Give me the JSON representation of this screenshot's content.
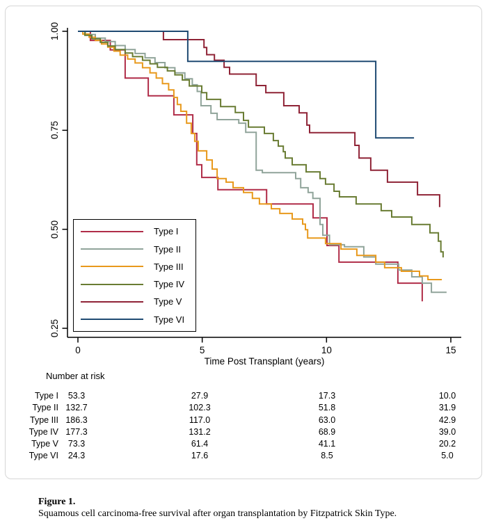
{
  "figure": {
    "caption_label": "Figure 1.",
    "caption_text": "Squamous cell carcinoma-free survival after organ transplantation by Fitzpatrick Skin Type."
  },
  "risk_table": {
    "heading": "Number at risk",
    "rows": [
      {
        "label": "Type I",
        "values": [
          "53.3",
          "27.9",
          "17.3",
          "10.0"
        ]
      },
      {
        "label": "Type II",
        "values": [
          "132.7",
          "102.3",
          "51.8",
          "31.9"
        ]
      },
      {
        "label": "Type III",
        "values": [
          "186.3",
          "117.0",
          "63.0",
          "42.9"
        ]
      },
      {
        "label": "Type IV",
        "values": [
          "177.3",
          "131.2",
          "68.9",
          "39.0"
        ]
      },
      {
        "label": "Type V",
        "values": [
          "73.3",
          "61.4",
          "41.1",
          "20.2"
        ]
      },
      {
        "label": "Type VI",
        "values": [
          "24.3",
          "17.6",
          "8.5",
          "5.0"
        ]
      }
    ]
  },
  "chart_data": {
    "type": "line",
    "step": true,
    "title": "",
    "xlabel": "Time Post Transplant (years)",
    "ylabel": "",
    "xlim": [
      0,
      15.2
    ],
    "ylim": [
      0.25,
      1.0
    ],
    "grid": false,
    "legend_position": "inside-left",
    "x_ticks": [
      {
        "v": 0,
        "label": "0"
      },
      {
        "v": 5,
        "label": "5"
      },
      {
        "v": 10,
        "label": "10"
      },
      {
        "v": 15,
        "label": "15"
      }
    ],
    "y_ticks": [
      {
        "v": 1.0,
        "label": "1.00"
      },
      {
        "v": 0.75,
        "label": "0.75"
      },
      {
        "v": 0.5,
        "label": "0.50"
      },
      {
        "v": 0.25,
        "label": "0.25"
      }
    ],
    "series": [
      {
        "name": "Type I",
        "color": "#b02c48",
        "points": [
          [
            0,
            1.0
          ],
          [
            0.5,
            0.977
          ],
          [
            1.3,
            0.953
          ],
          [
            1.9,
            0.882
          ],
          [
            2.83,
            0.837
          ],
          [
            3.86,
            0.789
          ],
          [
            4.62,
            0.742
          ],
          [
            4.78,
            0.663
          ],
          [
            4.98,
            0.631
          ],
          [
            5.63,
            0.6
          ],
          [
            7.59,
            0.564
          ],
          [
            9.46,
            0.529
          ],
          [
            10.02,
            0.459
          ],
          [
            10.5,
            0.417
          ],
          [
            12.87,
            0.364
          ],
          [
            13.85,
            0.318
          ]
        ]
      },
      {
        "name": "Type II",
        "color": "#90a49a",
        "points": [
          [
            0,
            1.0
          ],
          [
            0.3,
            0.992
          ],
          [
            0.7,
            0.983
          ],
          [
            1.1,
            0.974
          ],
          [
            1.5,
            0.964
          ],
          [
            1.9,
            0.954
          ],
          [
            2.3,
            0.944
          ],
          [
            2.7,
            0.933
          ],
          [
            3.1,
            0.921
          ],
          [
            3.5,
            0.908
          ],
          [
            3.9,
            0.895
          ],
          [
            4.3,
            0.88
          ],
          [
            4.6,
            0.865
          ],
          [
            4.8,
            0.848
          ],
          [
            4.95,
            0.812
          ],
          [
            5.35,
            0.793
          ],
          [
            5.6,
            0.777
          ],
          [
            6.47,
            0.768
          ],
          [
            6.75,
            0.745
          ],
          [
            7.17,
            0.649
          ],
          [
            7.42,
            0.643
          ],
          [
            8.76,
            0.628
          ],
          [
            8.96,
            0.605
          ],
          [
            9.26,
            0.593
          ],
          [
            9.45,
            0.578
          ],
          [
            9.74,
            0.512
          ],
          [
            9.85,
            0.485
          ],
          [
            10.12,
            0.461
          ],
          [
            10.72,
            0.456
          ],
          [
            11.5,
            0.43
          ],
          [
            11.98,
            0.412
          ],
          [
            12.9,
            0.397
          ],
          [
            13.43,
            0.38
          ],
          [
            13.85,
            0.364
          ],
          [
            14.22,
            0.341
          ],
          [
            14.83,
            0.341
          ]
        ]
      },
      {
        "name": "Type III",
        "color": "#e8991c",
        "points": [
          [
            0,
            1.0
          ],
          [
            0.2,
            0.993
          ],
          [
            0.45,
            0.985
          ],
          [
            0.7,
            0.977
          ],
          [
            0.95,
            0.968
          ],
          [
            1.2,
            0.96
          ],
          [
            1.45,
            0.95
          ],
          [
            1.7,
            0.94
          ],
          [
            2.0,
            0.93
          ],
          [
            2.3,
            0.92
          ],
          [
            2.6,
            0.908
          ],
          [
            2.9,
            0.895
          ],
          [
            3.15,
            0.882
          ],
          [
            3.4,
            0.868
          ],
          [
            3.65,
            0.852
          ],
          [
            3.86,
            0.833
          ],
          [
            4.0,
            0.815
          ],
          [
            4.14,
            0.798
          ],
          [
            4.37,
            0.768
          ],
          [
            4.56,
            0.742
          ],
          [
            4.7,
            0.722
          ],
          [
            4.84,
            0.698
          ],
          [
            5.18,
            0.675
          ],
          [
            5.4,
            0.652
          ],
          [
            5.6,
            0.628
          ],
          [
            5.96,
            0.619
          ],
          [
            6.24,
            0.605
          ],
          [
            6.66,
            0.593
          ],
          [
            7.02,
            0.578
          ],
          [
            7.3,
            0.564
          ],
          [
            7.78,
            0.552
          ],
          [
            8.12,
            0.54
          ],
          [
            8.62,
            0.526
          ],
          [
            9.04,
            0.513
          ],
          [
            9.15,
            0.499
          ],
          [
            9.24,
            0.478
          ],
          [
            9.96,
            0.464
          ],
          [
            10.58,
            0.45
          ],
          [
            11.22,
            0.434
          ],
          [
            11.98,
            0.417
          ],
          [
            12.34,
            0.403
          ],
          [
            13.01,
            0.394
          ],
          [
            13.74,
            0.382
          ],
          [
            14.08,
            0.373
          ],
          [
            14.64,
            0.373
          ]
        ]
      },
      {
        "name": "Type IV",
        "color": "#697c33",
        "points": [
          [
            0,
            1.0
          ],
          [
            0.28,
            0.99
          ],
          [
            0.56,
            0.981
          ],
          [
            0.9,
            0.972
          ],
          [
            1.2,
            0.963
          ],
          [
            1.5,
            0.954
          ],
          [
            1.9,
            0.945
          ],
          [
            2.2,
            0.936
          ],
          [
            2.6,
            0.927
          ],
          [
            2.9,
            0.918
          ],
          [
            3.2,
            0.909
          ],
          [
            3.6,
            0.9
          ],
          [
            3.9,
            0.89
          ],
          [
            4.2,
            0.877
          ],
          [
            4.48,
            0.862
          ],
          [
            4.98,
            0.845
          ],
          [
            5.18,
            0.828
          ],
          [
            5.74,
            0.81
          ],
          [
            6.33,
            0.795
          ],
          [
            6.66,
            0.775
          ],
          [
            6.86,
            0.758
          ],
          [
            7.5,
            0.742
          ],
          [
            7.86,
            0.724
          ],
          [
            8.06,
            0.71
          ],
          [
            8.26,
            0.696
          ],
          [
            8.34,
            0.68
          ],
          [
            8.62,
            0.663
          ],
          [
            9.18,
            0.645
          ],
          [
            9.74,
            0.628
          ],
          [
            9.96,
            0.614
          ],
          [
            10.3,
            0.596
          ],
          [
            10.52,
            0.582
          ],
          [
            11.19,
            0.564
          ],
          [
            12.2,
            0.547
          ],
          [
            12.62,
            0.531
          ],
          [
            13.43,
            0.512
          ],
          [
            14.16,
            0.491
          ],
          [
            14.5,
            0.47
          ],
          [
            14.6,
            0.443
          ],
          [
            14.69,
            0.429
          ]
        ]
      },
      {
        "name": "Type V",
        "color": "#8f2336",
        "points": [
          [
            0,
            1.0
          ],
          [
            3.44,
            0.979
          ],
          [
            5.07,
            0.959
          ],
          [
            5.18,
            0.941
          ],
          [
            5.49,
            0.927
          ],
          [
            5.88,
            0.909
          ],
          [
            6.1,
            0.892
          ],
          [
            7.17,
            0.863
          ],
          [
            7.56,
            0.845
          ],
          [
            8.28,
            0.812
          ],
          [
            8.9,
            0.794
          ],
          [
            9.21,
            0.763
          ],
          [
            9.32,
            0.744
          ],
          [
            11.14,
            0.712
          ],
          [
            11.31,
            0.68
          ],
          [
            11.78,
            0.649
          ],
          [
            12.45,
            0.619
          ],
          [
            13.66,
            0.587
          ],
          [
            14.55,
            0.556
          ]
        ]
      },
      {
        "name": "Type VI",
        "color": "#1f4a72",
        "points": [
          [
            0,
            1.0
          ],
          [
            4.42,
            0.924
          ],
          [
            11.98,
            0.731
          ],
          [
            13.52,
            0.731
          ]
        ]
      }
    ]
  }
}
